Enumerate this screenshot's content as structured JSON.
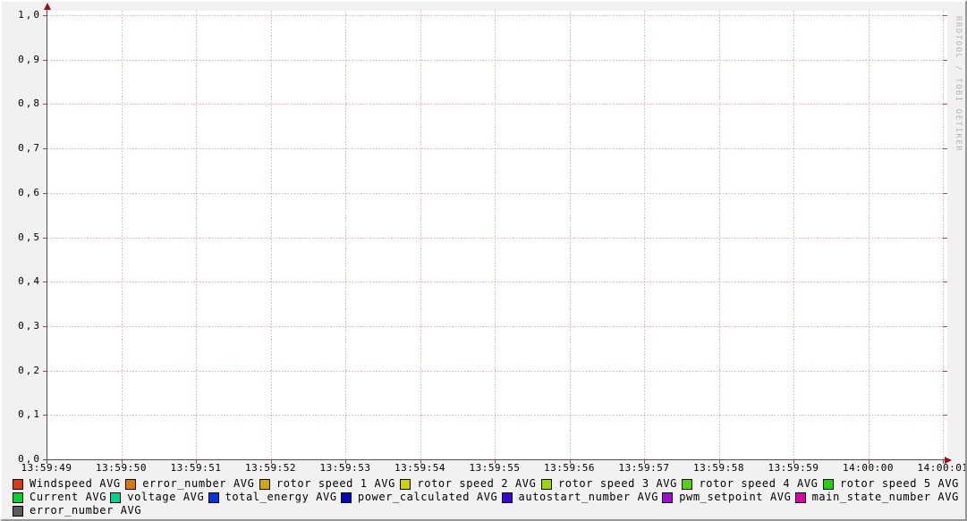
{
  "watermark": "RRDTOOL / TOBI OETIKER",
  "chart_data": {
    "type": "line",
    "title": "",
    "xlabel": "",
    "ylabel": "",
    "x_tick_labels": [
      "13:59:49",
      "13:59:50",
      "13:59:51",
      "13:59:52",
      "13:59:53",
      "13:59:54",
      "13:59:55",
      "13:59:56",
      "13:59:57",
      "13:59:58",
      "13:59:59",
      "14:00:00",
      "14:00:01"
    ],
    "y_tick_labels": [
      "0,0",
      "0,1",
      "0,2",
      "0,3",
      "0,4",
      "0,5",
      "0,6",
      "0,7",
      "0,8",
      "0,9",
      "1,0"
    ],
    "ylim": [
      0.0,
      1.0
    ],
    "y_tick_step": 0.1,
    "grid": true,
    "legend_position": "bottom",
    "series": [
      {
        "name": "Windspeed AVG",
        "color": "#dd380f",
        "values": []
      },
      {
        "name": "error_number AVG",
        "color": "#dd7700",
        "values": []
      },
      {
        "name": "rotor speed 1 AVG",
        "color": "#d4a500",
        "values": []
      },
      {
        "name": "rotor speed 2 AVG",
        "color": "#cdd300",
        "values": []
      },
      {
        "name": "rotor speed 3 AVG",
        "color": "#9ed400",
        "values": []
      },
      {
        "name": "rotor speed 4 AVG",
        "color": "#55d400",
        "values": []
      },
      {
        "name": "rotor speed 5 AVG",
        "color": "#1fd400",
        "values": []
      },
      {
        "name": "Current AVG",
        "color": "#00d42a",
        "values": []
      },
      {
        "name": "voltage AVG",
        "color": "#00d487",
        "values": []
      },
      {
        "name": "total_energy AVG",
        "color": "#0635d8",
        "values": []
      },
      {
        "name": "power_calculated AVG",
        "color": "#0009b3",
        "values": []
      },
      {
        "name": "autostart_number AVG",
        "color": "#3a06cf",
        "values": []
      },
      {
        "name": "pwm_setpoint AVG",
        "color": "#a00bd4",
        "values": []
      },
      {
        "name": "main_state_number AVG",
        "color": "#d808a8",
        "values": []
      },
      {
        "name": "error_number AVG",
        "color": "#5c5c5c",
        "values": []
      }
    ]
  },
  "legend": {
    "rows": [
      {
        "items": [
          {
            "label": "Windspeed AVG",
            "color": "#dd380f"
          },
          {
            "label": "error_number AVG",
            "color": "#dd7700"
          },
          {
            "label": "rotor speed 1 AVG",
            "color": "#d4a500"
          },
          {
            "label": "rotor speed 2 AVG",
            "color": "#cdd300"
          },
          {
            "label": "rotor speed 3 AVG",
            "color": "#9ed400"
          },
          {
            "label": "rotor speed 4 AVG",
            "color": "#55d400"
          },
          {
            "label": "rotor speed 5 AVG",
            "color": "#1fd400"
          }
        ]
      },
      {
        "items": [
          {
            "label": "Current AVG",
            "color": "#00d42a"
          },
          {
            "label": "voltage AVG",
            "color": "#00d487"
          },
          {
            "label": "total_energy AVG",
            "color": "#0635d8"
          },
          {
            "label": "power_calculated AVG",
            "color": "#0009b3"
          },
          {
            "label": "autostart_number AVG",
            "color": "#3a06cf"
          },
          {
            "label": "pwm_setpoint AVG",
            "color": "#a00bd4"
          },
          {
            "label": "main_state_number AVG",
            "color": "#d808a8"
          }
        ]
      },
      {
        "items": [
          {
            "label": "error_number AVG",
            "color": "#5c5c5c"
          }
        ]
      }
    ]
  },
  "colors": {
    "background": "#f1f1f1",
    "plot_background": "#ffffff",
    "major_grid": "#d07070",
    "axis": "#4f4f4f",
    "arrow": "#9c1010",
    "watermark": "#b4b4b4"
  }
}
